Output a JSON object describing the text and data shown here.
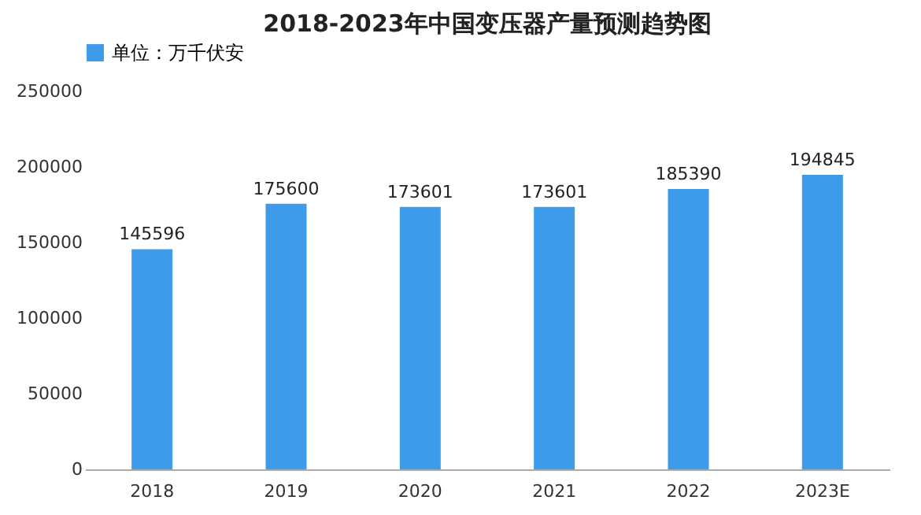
{
  "chart_data": {
    "type": "bar",
    "title": "2018-2023年中国变压器产量预测趋势图",
    "categories": [
      "2018",
      "2019",
      "2020",
      "2021",
      "2022",
      "2023E"
    ],
    "series": [
      {
        "name": "单位：万千伏安",
        "color": "#3d9be9",
        "values": [
          145596,
          175600,
          173601,
          173601,
          185390,
          194845
        ]
      }
    ],
    "ylim": [
      0,
      250000
    ],
    "yticks": [
      0,
      50000,
      100000,
      150000,
      200000,
      250000
    ],
    "data_labels": true,
    "legend": "top",
    "grid": false
  }
}
